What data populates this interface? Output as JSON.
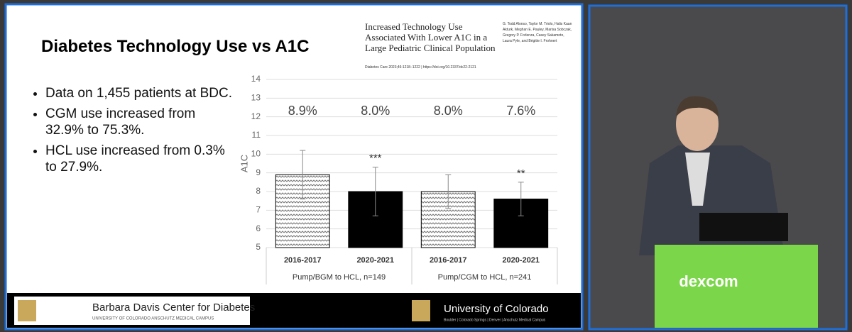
{
  "slide": {
    "title": "Diabetes Technology Use vs A1C",
    "bullets": [
      "Data on 1,455 patients at BDC.",
      "CGM use increased from 32.9% to 75.3%.",
      "HCL use increased from 0.3% to 27.9%."
    ],
    "citation": {
      "title": "Increased Technology Use Associated With Lower A1C in a Large Pediatric Clinical Population",
      "authors": "G. Todd Alonso, Taylor M. Triolo, Halis Kaan Akturk, Meghan E. Pauley, Marisa Sobczak, Gregory P. Forlenza, Casey Sakamoto, Laura Pyle, and Brigitte I. Frohnert",
      "source": "Diabetes Care 2023;46:1218–1222 | https://doi.org/10.2337/dc22-2121"
    },
    "footer": {
      "left_title": "Barbara Davis Center for Diabetes",
      "left_subtitle": "UNIVERSITY OF COLORADO ANSCHUTZ MEDICAL CAMPUS",
      "right_title": "University of Colorado",
      "right_subtitle": "Boulder | Colorado Springs | Denver | Anschutz Medical Campus"
    }
  },
  "video": {
    "podium_text": "dexcom"
  },
  "chart_data": {
    "type": "bar",
    "y_label": "A1C",
    "categories": [
      "2016-2017",
      "2020-2021",
      "2016-2017",
      "2020-2021"
    ],
    "groups": [
      "Pump/BGM to HCL, n=149",
      "Pump/CGM to HCL, n=241"
    ],
    "values": [
      8.9,
      8.0,
      8.0,
      7.6
    ],
    "value_labels": [
      "8.9%",
      "8.0%",
      "8.0%",
      "7.6%"
    ],
    "errors": [
      1.3,
      1.3,
      0.9,
      0.9
    ],
    "annotations": [
      null,
      "***",
      null,
      "**"
    ],
    "bar_styles": [
      "hatch",
      "solid",
      "hatch",
      "solid"
    ],
    "color": "#000000",
    "ylim": [
      5,
      14
    ],
    "yticks": [
      5,
      6,
      7,
      8,
      9,
      10,
      11,
      12,
      13,
      14
    ],
    "grid": true
  }
}
